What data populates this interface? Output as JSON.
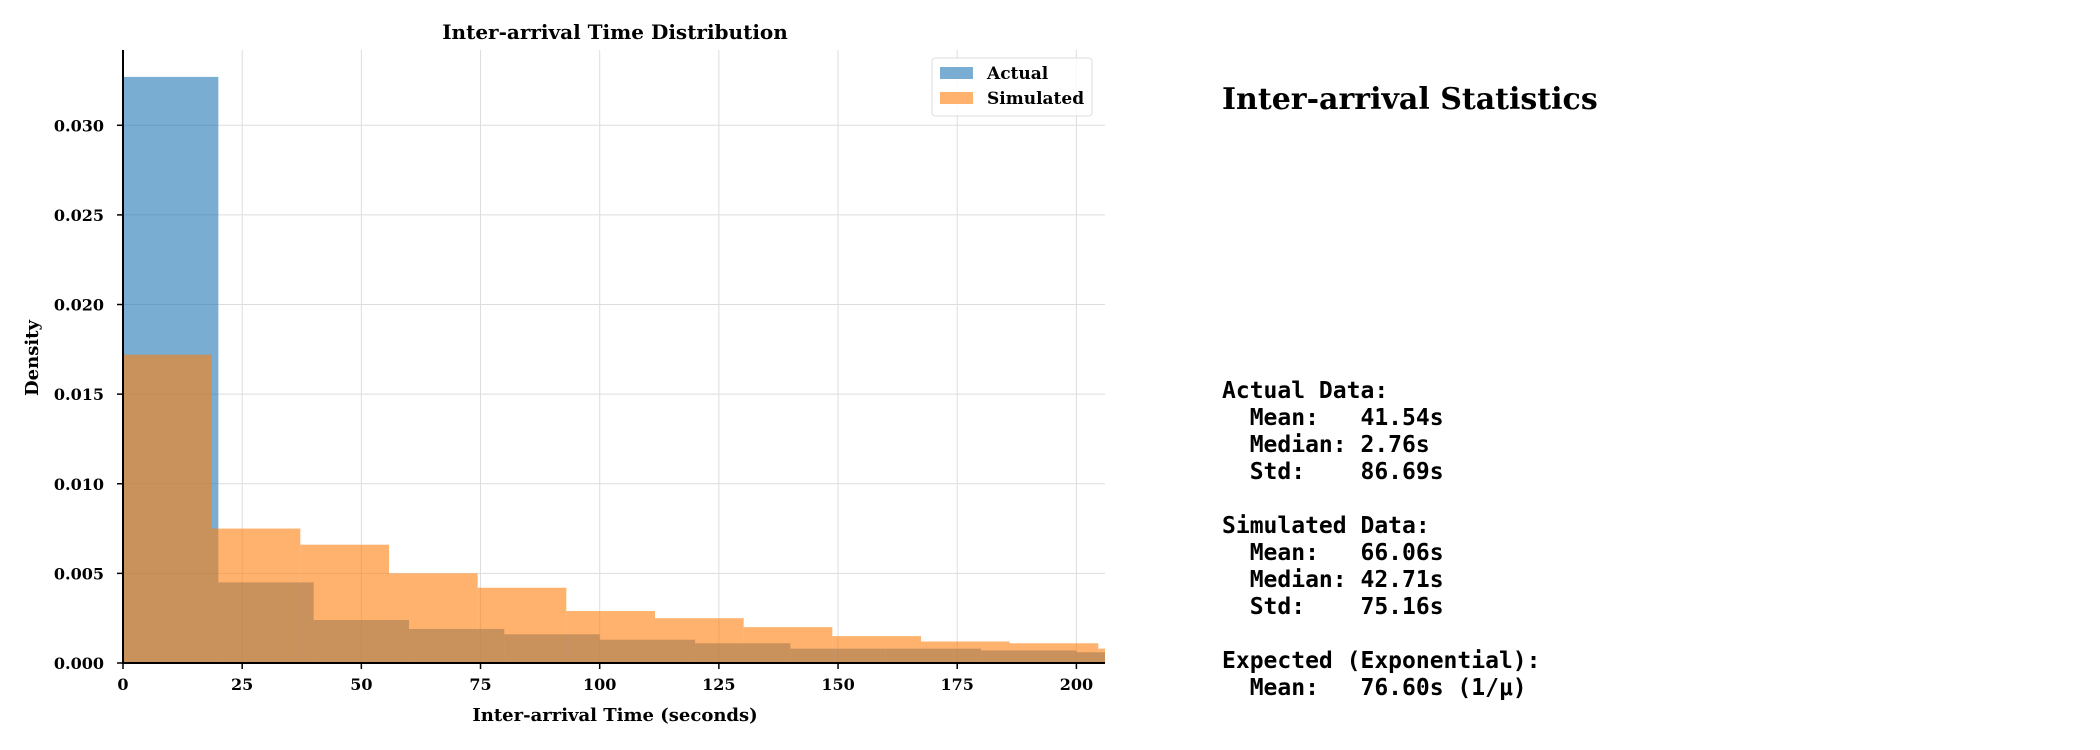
{
  "chart_data": {
    "type": "bar",
    "title": "Inter-arrival Time Distribution",
    "xlabel": "Inter-arrival Time (seconds)",
    "ylabel": "Density",
    "xlim": [
      0,
      206
    ],
    "ylim": [
      0,
      0.0342
    ],
    "x_ticks": [
      0,
      25,
      50,
      75,
      100,
      125,
      150,
      175,
      200
    ],
    "y_ticks": [
      0.0,
      0.005,
      0.01,
      0.015,
      0.02,
      0.025,
      0.03
    ],
    "y_tick_labels": [
      "0.000",
      "0.005",
      "0.010",
      "0.015",
      "0.020",
      "0.025",
      "0.030"
    ],
    "grid": true,
    "legend_position": "top-right",
    "series": [
      {
        "name": "Actual",
        "color": "#1f77b4",
        "bin_edges": [
          0,
          20,
          40,
          60,
          80,
          100,
          120,
          140,
          160,
          180,
          200,
          220
        ],
        "values": [
          0.0327,
          0.0045,
          0.0024,
          0.0019,
          0.0016,
          0.0013,
          0.0011,
          0.0008,
          0.0008,
          0.0007,
          0.0006
        ]
      },
      {
        "name": "Simulated",
        "color": "#ff7f0e",
        "bin_edges": [
          0,
          18.6,
          37.2,
          55.8,
          74.4,
          93.0,
          111.6,
          130.2,
          148.8,
          167.4,
          186.0,
          204.6,
          223.2
        ],
        "values": [
          0.0172,
          0.0075,
          0.0066,
          0.005,
          0.0042,
          0.0029,
          0.0025,
          0.002,
          0.0015,
          0.0012,
          0.0011,
          0.0008
        ]
      }
    ]
  },
  "stats": {
    "title": "Inter-arrival Statistics",
    "text": "Actual Data:\n  Mean:   41.54s\n  Median: 2.76s\n  Std:    86.69s\n\nSimulated Data:\n  Mean:   66.06s\n  Median: 42.71s\n  Std:    75.16s\n\nExpected (Exponential):\n  Mean:   76.60s (1/μ)"
  }
}
